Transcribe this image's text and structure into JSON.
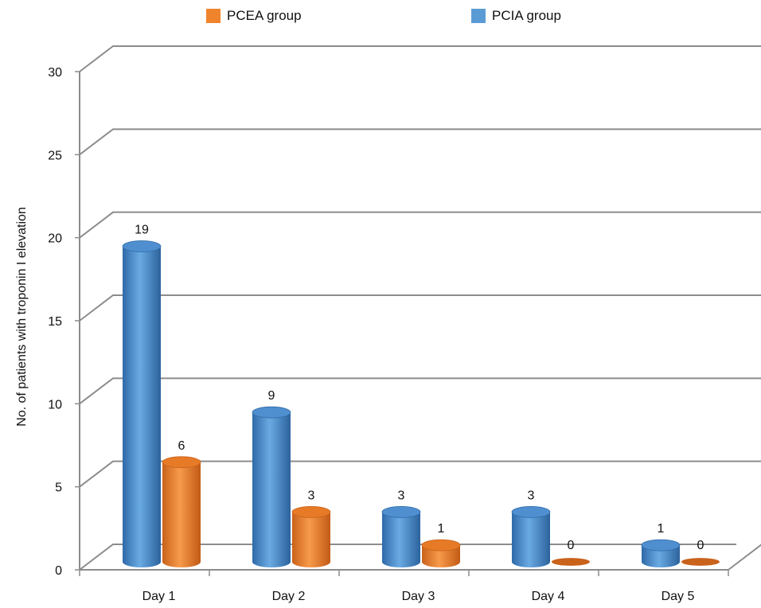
{
  "legend": {
    "pcea_label": "PCEA group",
    "pcia_label": "PCIA group"
  },
  "colors": {
    "pcea": "#f0842c",
    "pcea_dark": "#c9621b",
    "pcia": "#5b9bd5",
    "pcia_dark": "#2f6aa8",
    "grid": "#8c8c8c"
  },
  "chart_data": {
    "type": "bar",
    "style": "3d-cylinder",
    "categories": [
      "Day 1",
      "Day 2",
      "Day 3",
      "Day 4",
      "Day 5"
    ],
    "series": [
      {
        "name": "PCIA group",
        "values": [
          19,
          9,
          3,
          3,
          1
        ]
      },
      {
        "name": "PCEA group",
        "values": [
          6,
          3,
          1,
          0,
          0
        ]
      }
    ],
    "ylabel": "No. of patients with troponin I elevation",
    "xlabel": "",
    "ylim": [
      0,
      30
    ],
    "yticks": [
      0,
      5,
      10,
      15,
      20,
      25,
      30
    ],
    "grid": true,
    "legend_position": "top"
  }
}
